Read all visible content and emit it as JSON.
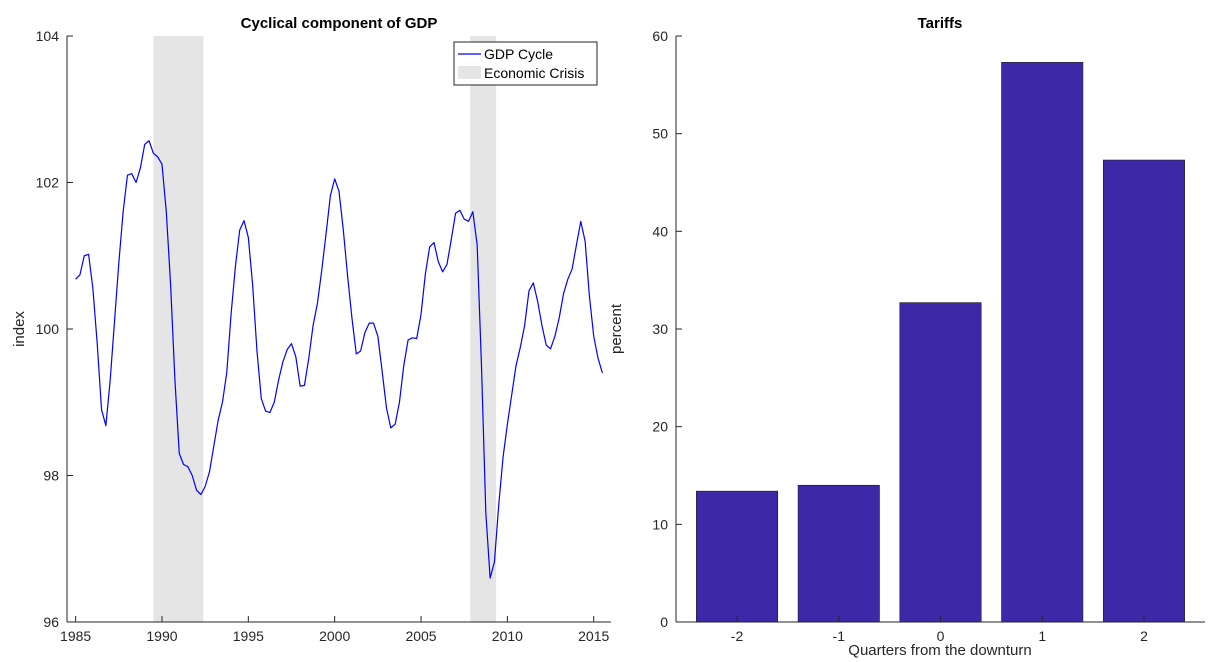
{
  "chart_data": [
    {
      "type": "line",
      "title": "Cyclical component of GDP",
      "xlabel": "",
      "ylabel": "index",
      "xlim": [
        1984.5,
        2016.0
      ],
      "ylim": [
        96,
        104
      ],
      "xticks": [
        1985,
        1990,
        1995,
        2000,
        2005,
        2010,
        2015
      ],
      "yticks": [
        96,
        98,
        100,
        102,
        104
      ],
      "xtick_labels": [
        "1985",
        "1990",
        "1995",
        "2000",
        "2005",
        "2010",
        "2015"
      ],
      "ytick_labels": [
        "96",
        "98",
        "100",
        "102",
        "104"
      ],
      "grid": false,
      "legend_position": "top-right",
      "legend": [
        "GDP Cycle",
        "Economic Crisis"
      ],
      "series": [
        {
          "name": "GDP Cycle",
          "color": "#0000ff",
          "points": [
            [
              1985.0,
              100.68
            ],
            [
              1985.25,
              100.74
            ],
            [
              1985.5,
              101.0
            ],
            [
              1985.75,
              101.02
            ],
            [
              1986.0,
              100.55
            ],
            [
              1986.25,
              99.8
            ],
            [
              1986.5,
              98.9
            ],
            [
              1986.75,
              98.68
            ],
            [
              1987.0,
              99.3
            ],
            [
              1987.25,
              100.1
            ],
            [
              1987.5,
              100.9
            ],
            [
              1987.75,
              101.6
            ],
            [
              1988.0,
              102.1
            ],
            [
              1988.25,
              102.12
            ],
            [
              1988.5,
              102.0
            ],
            [
              1988.75,
              102.2
            ],
            [
              1989.0,
              102.52
            ],
            [
              1989.25,
              102.57
            ],
            [
              1989.5,
              102.4
            ],
            [
              1989.75,
              102.35
            ],
            [
              1990.0,
              102.25
            ],
            [
              1990.25,
              101.6
            ],
            [
              1990.5,
              100.6
            ],
            [
              1990.75,
              99.3
            ],
            [
              1991.0,
              98.3
            ],
            [
              1991.25,
              98.15
            ],
            [
              1991.5,
              98.12
            ],
            [
              1991.75,
              98.0
            ],
            [
              1992.0,
              97.8
            ],
            [
              1992.25,
              97.74
            ],
            [
              1992.5,
              97.85
            ],
            [
              1992.75,
              98.05
            ],
            [
              1993.0,
              98.4
            ],
            [
              1993.25,
              98.75
            ],
            [
              1993.5,
              99.0
            ],
            [
              1993.75,
              99.4
            ],
            [
              1994.0,
              100.2
            ],
            [
              1994.25,
              100.85
            ],
            [
              1994.5,
              101.35
            ],
            [
              1994.75,
              101.48
            ],
            [
              1995.0,
              101.25
            ],
            [
              1995.25,
              100.6
            ],
            [
              1995.5,
              99.7
            ],
            [
              1995.75,
              99.05
            ],
            [
              1996.0,
              98.88
            ],
            [
              1996.25,
              98.86
            ],
            [
              1996.5,
              99.0
            ],
            [
              1996.75,
              99.3
            ],
            [
              1997.0,
              99.55
            ],
            [
              1997.25,
              99.72
            ],
            [
              1997.5,
              99.8
            ],
            [
              1997.75,
              99.62
            ],
            [
              1998.0,
              99.22
            ],
            [
              1998.25,
              99.23
            ],
            [
              1998.5,
              99.6
            ],
            [
              1998.75,
              100.05
            ],
            [
              1999.0,
              100.35
            ],
            [
              1999.25,
              100.8
            ],
            [
              1999.5,
              101.3
            ],
            [
              1999.75,
              101.82
            ],
            [
              2000.0,
              102.05
            ],
            [
              2000.25,
              101.88
            ],
            [
              2000.5,
              101.35
            ],
            [
              2000.75,
              100.72
            ],
            [
              2001.0,
              100.15
            ],
            [
              2001.25,
              99.66
            ],
            [
              2001.5,
              99.7
            ],
            [
              2001.75,
              99.95
            ],
            [
              2002.0,
              100.08
            ],
            [
              2002.25,
              100.08
            ],
            [
              2002.5,
              99.9
            ],
            [
              2002.75,
              99.42
            ],
            [
              2003.0,
              98.92
            ],
            [
              2003.25,
              98.65
            ],
            [
              2003.5,
              98.7
            ],
            [
              2003.75,
              99.0
            ],
            [
              2004.0,
              99.5
            ],
            [
              2004.25,
              99.85
            ],
            [
              2004.5,
              99.88
            ],
            [
              2004.75,
              99.87
            ],
            [
              2005.0,
              100.2
            ],
            [
              2005.25,
              100.75
            ],
            [
              2005.5,
              101.12
            ],
            [
              2005.75,
              101.18
            ],
            [
              2006.0,
              100.92
            ],
            [
              2006.25,
              100.78
            ],
            [
              2006.5,
              100.88
            ],
            [
              2006.75,
              101.22
            ],
            [
              2007.0,
              101.58
            ],
            [
              2007.25,
              101.62
            ],
            [
              2007.5,
              101.5
            ],
            [
              2007.75,
              101.47
            ],
            [
              2008.0,
              101.6
            ],
            [
              2008.25,
              101.15
            ],
            [
              2008.5,
              99.5
            ],
            [
              2008.75,
              97.5
            ],
            [
              2009.0,
              96.6
            ],
            [
              2009.25,
              96.82
            ],
            [
              2009.5,
              97.6
            ],
            [
              2009.75,
              98.25
            ],
            [
              2010.0,
              98.7
            ],
            [
              2010.25,
              99.1
            ],
            [
              2010.5,
              99.5
            ],
            [
              2010.75,
              99.75
            ],
            [
              2011.0,
              100.05
            ],
            [
              2011.25,
              100.52
            ],
            [
              2011.5,
              100.63
            ],
            [
              2011.75,
              100.38
            ],
            [
              2012.0,
              100.05
            ],
            [
              2012.25,
              99.78
            ],
            [
              2012.5,
              99.73
            ],
            [
              2012.75,
              99.9
            ],
            [
              2013.0,
              100.15
            ],
            [
              2013.25,
              100.48
            ],
            [
              2013.5,
              100.68
            ],
            [
              2013.75,
              100.82
            ],
            [
              2014.0,
              101.15
            ],
            [
              2014.25,
              101.47
            ],
            [
              2014.5,
              101.2
            ],
            [
              2014.75,
              100.45
            ],
            [
              2015.0,
              99.9
            ],
            [
              2015.25,
              99.6
            ],
            [
              2015.5,
              99.4
            ]
          ]
        }
      ],
      "crisis_periods": [
        {
          "name": "Economic Crisis",
          "color": "#e5e5e5",
          "start": 1989.5,
          "end": 1992.4
        },
        {
          "name": "Economic Crisis",
          "color": "#e5e5e5",
          "start": 2007.85,
          "end": 2009.35
        }
      ]
    },
    {
      "type": "bar",
      "title": "Tariffs",
      "xlabel": "Quarters from the downturn",
      "ylabel": "percent",
      "categories": [
        "-2",
        "-1",
        "0",
        "1",
        "2"
      ],
      "values": [
        13.4,
        14.0,
        32.7,
        57.3,
        47.3
      ],
      "ylim": [
        0,
        60
      ],
      "yticks": [
        0,
        10,
        20,
        30,
        40,
        50,
        60
      ],
      "ytick_labels": [
        "0",
        "10",
        "20",
        "30",
        "40",
        "50",
        "60"
      ],
      "grid": false,
      "bar_color": "#3d28a7"
    }
  ]
}
